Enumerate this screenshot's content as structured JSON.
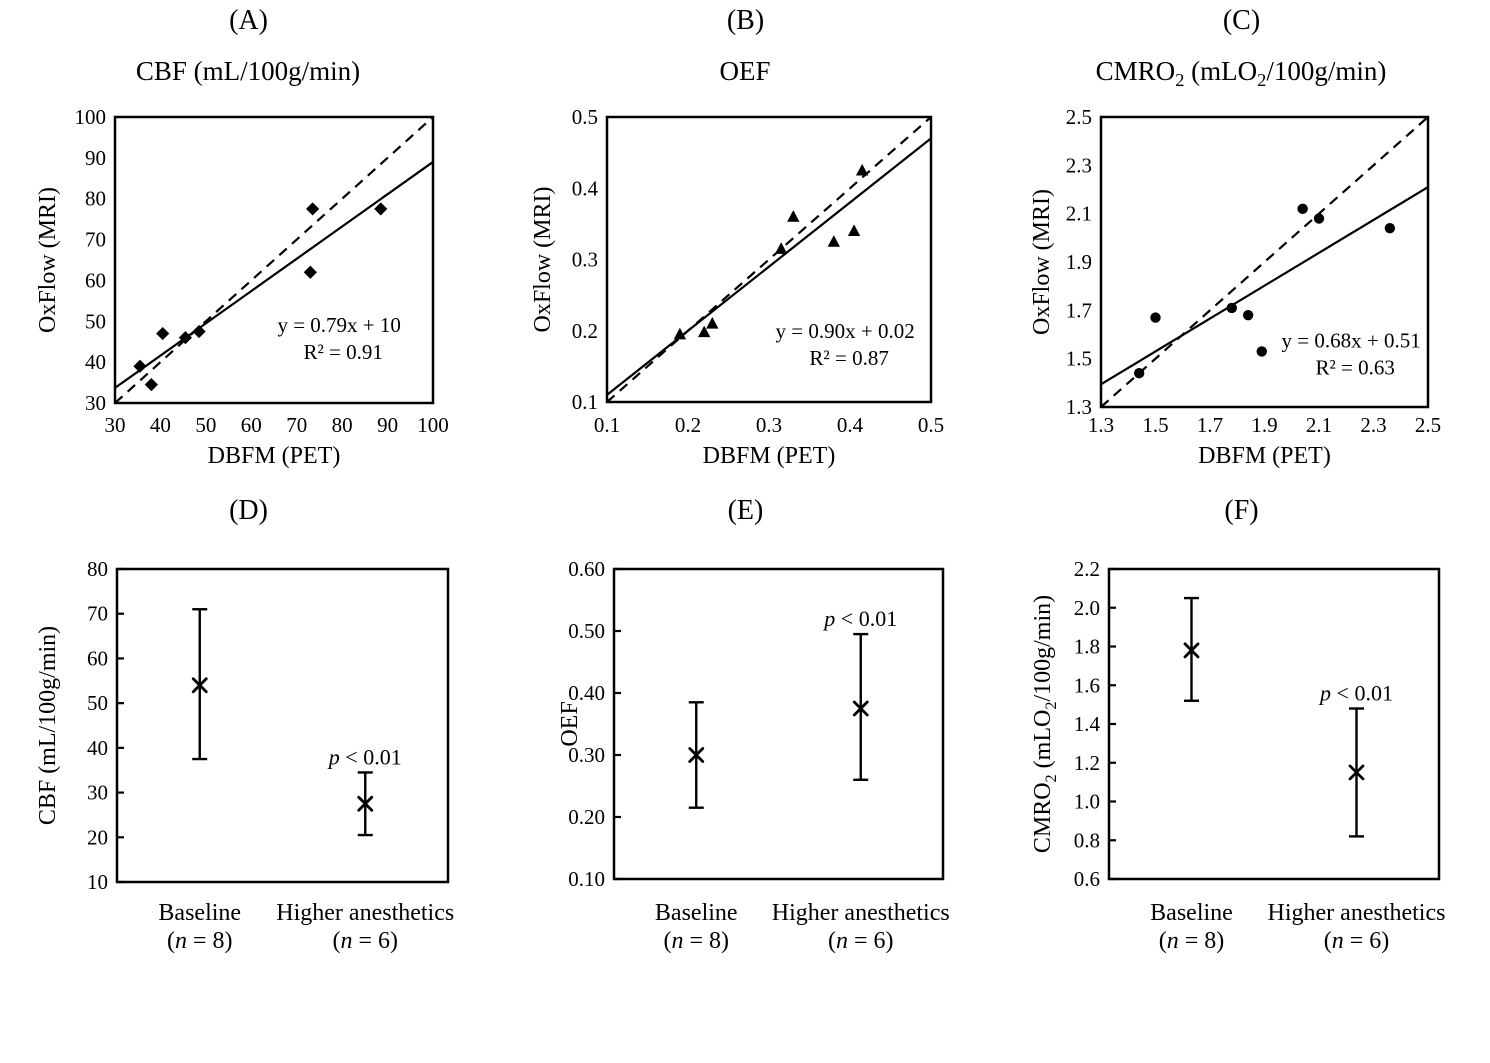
{
  "figure": {
    "background_color": "#ffffff",
    "ink_color": "#000000"
  },
  "chart_data": [
    {
      "id": "A",
      "panel_label": "(A)",
      "type": "scatter",
      "title": [
        {
          "t": "CBF (mL/100g/min)"
        }
      ],
      "xlabel": "DBFM (PET)",
      "ylabel": "OxFlow (MRI)",
      "marker": "diamond",
      "xlim": [
        30,
        100
      ],
      "ylim": [
        30,
        100
      ],
      "xticks": [
        30,
        40,
        50,
        60,
        70,
        80,
        90,
        100
      ],
      "yticks": [
        30,
        40,
        50,
        60,
        70,
        80,
        90,
        100
      ],
      "xtick_decimals": 0,
      "ytick_decimals": 0,
      "points": [
        [
          35.5,
          39
        ],
        [
          38,
          34.5
        ],
        [
          40.5,
          47
        ],
        [
          45.5,
          46
        ],
        [
          48.5,
          47.5
        ],
        [
          73,
          62
        ],
        [
          73.5,
          77.5
        ],
        [
          88.5,
          77.5
        ]
      ],
      "identity_line": true,
      "regression": {
        "slope": 0.79,
        "intercept": 10
      },
      "equation": "y = 0.79x + 10",
      "r_squared": "R² = 0.91"
    },
    {
      "id": "B",
      "panel_label": "(B)",
      "type": "scatter",
      "title": [
        {
          "t": "OEF"
        }
      ],
      "xlabel": "DBFM (PET)",
      "ylabel": "OxFlow (MRI)",
      "marker": "triangle",
      "xlim": [
        0.1,
        0.5
      ],
      "ylim": [
        0.1,
        0.5
      ],
      "xticks": [
        0.1,
        0.2,
        0.3,
        0.4,
        0.5
      ],
      "yticks": [
        0.1,
        0.2,
        0.3,
        0.4,
        0.5
      ],
      "xtick_decimals": 1,
      "ytick_decimals": 1,
      "points": [
        [
          0.19,
          0.195
        ],
        [
          0.22,
          0.198
        ],
        [
          0.23,
          0.21
        ],
        [
          0.315,
          0.315
        ],
        [
          0.33,
          0.36
        ],
        [
          0.38,
          0.325
        ],
        [
          0.405,
          0.34
        ],
        [
          0.415,
          0.425
        ]
      ],
      "identity_line": true,
      "regression": {
        "slope": 0.9,
        "intercept": 0.02
      },
      "equation": "y = 0.90x + 0.02",
      "r_squared": "R² = 0.87"
    },
    {
      "id": "C",
      "panel_label": "(C)",
      "type": "scatter",
      "title": [
        {
          "t": "CMRO"
        },
        {
          "t": "2",
          "sub": true
        },
        {
          "t": " (mLO"
        },
        {
          "t": "2",
          "sub": true
        },
        {
          "t": "/100g/min)"
        }
      ],
      "xlabel": "DBFM (PET)",
      "ylabel": "OxFlow (MRI)",
      "marker": "circle",
      "xlim": [
        1.3,
        2.5
      ],
      "ylim": [
        1.3,
        2.5
      ],
      "xticks": [
        1.3,
        1.5,
        1.7,
        1.9,
        2.1,
        2.3,
        2.5
      ],
      "yticks": [
        1.3,
        1.5,
        1.7,
        1.9,
        2.1,
        2.3,
        2.5
      ],
      "xtick_decimals": 1,
      "ytick_decimals": 1,
      "points": [
        [
          1.44,
          1.44
        ],
        [
          1.5,
          1.67
        ],
        [
          1.78,
          1.71
        ],
        [
          1.84,
          1.68
        ],
        [
          1.89,
          1.53
        ],
        [
          2.04,
          2.12
        ],
        [
          2.1,
          2.08
        ],
        [
          2.36,
          2.04
        ]
      ],
      "identity_line": true,
      "regression": {
        "slope": 0.68,
        "intercept": 0.51
      },
      "equation": "y = 0.68x + 0.51",
      "r_squared": "R² = 0.63"
    },
    {
      "id": "D",
      "panel_label": "(D)",
      "type": "errorbar",
      "ylabel": [
        {
          "t": "CBF (mL/100g/min)"
        }
      ],
      "ylim": [
        10,
        80
      ],
      "yticks": [
        10,
        20,
        30,
        40,
        50,
        60,
        70,
        80
      ],
      "ytick_decimals": 0,
      "groups": [
        {
          "label": "Baseline",
          "n_label": [
            {
              "t": "("
            },
            {
              "t": "n",
              "i": true
            },
            {
              "t": " = 8)"
            }
          ],
          "mean": 54,
          "low": 37.5,
          "high": 71
        },
        {
          "label": "Higher anesthetics",
          "n_label": [
            {
              "t": "("
            },
            {
              "t": "n",
              "i": true
            },
            {
              "t": " = 6)"
            }
          ],
          "mean": 27.5,
          "low": 20.5,
          "high": 34.5,
          "p_annotation": [
            {
              "t": "p",
              "i": true
            },
            {
              "t": " < 0.01"
            }
          ]
        }
      ]
    },
    {
      "id": "E",
      "panel_label": "(E)",
      "type": "errorbar",
      "ylabel": [
        {
          "t": "OEF"
        }
      ],
      "ylim": [
        0.1,
        0.6
      ],
      "yticks": [
        0.1,
        0.2,
        0.3,
        0.4,
        0.5,
        0.6
      ],
      "ytick_decimals": 2,
      "groups": [
        {
          "label": "Baseline",
          "n_label": [
            {
              "t": "("
            },
            {
              "t": "n",
              "i": true
            },
            {
              "t": " = 8)"
            }
          ],
          "mean": 0.3,
          "low": 0.215,
          "high": 0.385
        },
        {
          "label": "Higher anesthetics",
          "n_label": [
            {
              "t": "("
            },
            {
              "t": "n",
              "i": true
            },
            {
              "t": " = 6)"
            }
          ],
          "mean": 0.375,
          "low": 0.26,
          "high": 0.495,
          "p_annotation": [
            {
              "t": "p",
              "i": true
            },
            {
              "t": " < 0.01"
            }
          ]
        }
      ]
    },
    {
      "id": "F",
      "panel_label": "(F)",
      "type": "errorbar",
      "ylabel": [
        {
          "t": "CMRO"
        },
        {
          "t": "2",
          "sub": true
        },
        {
          "t": " (mLO"
        },
        {
          "t": "2",
          "sub": true
        },
        {
          "t": "/100g/min)"
        }
      ],
      "ylim": [
        0.6,
        2.2
      ],
      "yticks": [
        0.6,
        0.8,
        1.0,
        1.2,
        1.4,
        1.6,
        1.8,
        2.0,
        2.2
      ],
      "ytick_decimals": 1,
      "groups": [
        {
          "label": "Baseline",
          "n_label": [
            {
              "t": "("
            },
            {
              "t": "n",
              "i": true
            },
            {
              "t": " = 8)"
            }
          ],
          "mean": 1.78,
          "low": 1.52,
          "high": 2.05
        },
        {
          "label": "Higher anesthetics",
          "n_label": [
            {
              "t": "("
            },
            {
              "t": "n",
              "i": true
            },
            {
              "t": " = 6)"
            }
          ],
          "mean": 1.15,
          "low": 0.82,
          "high": 1.48,
          "p_annotation": [
            {
              "t": "p",
              "i": true
            },
            {
              "t": " < 0.01"
            }
          ]
        }
      ]
    }
  ]
}
